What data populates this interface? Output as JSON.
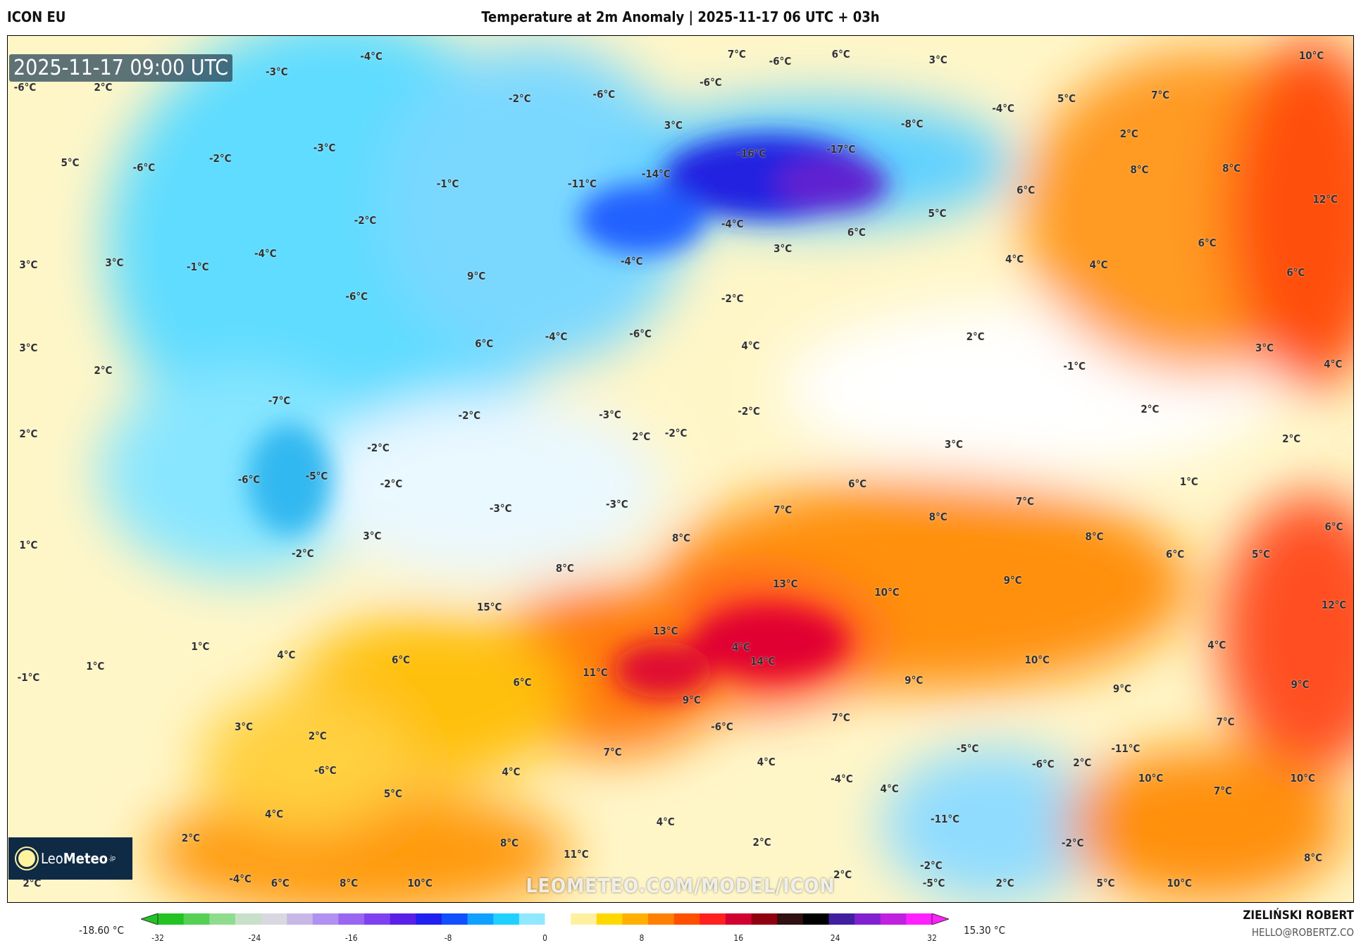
{
  "header": {
    "model": "ICON EU",
    "title": "Temperature at 2m Anomaly | 2025-11-17 06 UTC + 03h"
  },
  "map": {
    "timestamp": "2025-11-17 09:00 UTC",
    "watermark": "LEOMETEO.COM/MODEL/ICON",
    "logo": {
      "name": "LeoMeteo",
      "part1": "Leo",
      "part2": "Meteo",
      "suffix": ".jp"
    },
    "labels": [
      "-6°C",
      "2°C",
      "-3°C",
      "-4°C",
      "7°C",
      "-6°C",
      "6°C",
      "3°C",
      "10°C",
      "-2°C",
      "-6°C",
      "-6°C",
      "3°C",
      "5°C",
      "7°C",
      "-4°C",
      "-8°C",
      "2°C",
      "-3°C",
      "-2°C",
      "5°C",
      "-6°C",
      "-1°C",
      "-11°C",
      "-14°C",
      "-16°C",
      "-17°C",
      "8°C",
      "8°C",
      "6°C",
      "12°C",
      "-2°C",
      "5°C",
      "-4°C",
      "6°C",
      "3°C",
      "4°C",
      "4°C",
      "6°C",
      "6°C",
      "3°C",
      "3°C",
      "-1°C",
      "-4°C",
      "-6°C",
      "9°C",
      "-4°C",
      "-2°C",
      "3°C",
      "2°C",
      "6°C",
      "-4°C",
      "-6°C",
      "4°C",
      "2°C",
      "-1°C",
      "3°C",
      "4°C",
      "-7°C",
      "2°C",
      "-2°C",
      "-3°C",
      "2°C",
      "-2°C",
      "-2°C",
      "2°C",
      "2°C",
      "3°C",
      "-2°C",
      "-6°C",
      "-5°C",
      "-2°C",
      "-3°C",
      "-3°C",
      "6°C",
      "7°C",
      "7°C",
      "8°C",
      "1°C",
      "6°C",
      "1°C",
      "3°C",
      "-2°C",
      "8°C",
      "8°C",
      "6°C",
      "5°C",
      "8°C",
      "13°C",
      "9°C",
      "10°C",
      "12°C",
      "15°C",
      "13°C",
      "1°C",
      "4°C",
      "4°C",
      "4°C",
      "10°C",
      "6°C",
      "14°C",
      "-1°C",
      "1°C",
      "11°C",
      "6°C",
      "9°C",
      "9°C",
      "9°C",
      "9°C",
      "3°C",
      "7°C",
      "7°C",
      "-6°C",
      "2°C",
      "-5°C",
      "-11°C",
      "-6°C",
      "2°C",
      "-6°C",
      "7°C",
      "4°C",
      "-4°C",
      "4°C",
      "5°C",
      "4°C",
      "10°C",
      "10°C",
      "7°C",
      "4°C",
      "-11°C",
      "4°C",
      "2°C",
      "2°C",
      "8°C",
      "11°C",
      "-2°C",
      "8°C",
      "-2°C",
      "2°C",
      "-4°C",
      "2°C",
      "6°C",
      "8°C",
      "10°C",
      "-5°C",
      "2°C",
      "5°C",
      "10°C"
    ]
  },
  "colorbar": {
    "min_label": "-18.60 °C",
    "max_label": "15.30 °C",
    "ticks": [
      "-32",
      "-24",
      "-16",
      "-8",
      "0",
      "8",
      "16",
      "24",
      "32"
    ],
    "range": [
      -32,
      32
    ],
    "colors": [
      "#22c322",
      "#55d055",
      "#8fdc8f",
      "#c8e0c8",
      "#d8d8e0",
      "#c8b8e8",
      "#b090f0",
      "#9a66f0",
      "#7f40f0",
      "#5a20e8",
      "#2020f0",
      "#1050ff",
      "#10a0ff",
      "#20d0ff",
      "#90e8ff",
      "#ffffff",
      "#fff0a0",
      "#ffd800",
      "#ffb000",
      "#ff8000",
      "#ff5000",
      "#ff2020",
      "#d00030",
      "#900010",
      "#301010",
      "#000000",
      "#4020a0",
      "#8020d0",
      "#c020e0",
      "#ff20ff"
    ]
  },
  "credits": {
    "author": "ZIELIŃSKI ROBERT",
    "email": "HELLO@ROBERTZ.CO"
  }
}
